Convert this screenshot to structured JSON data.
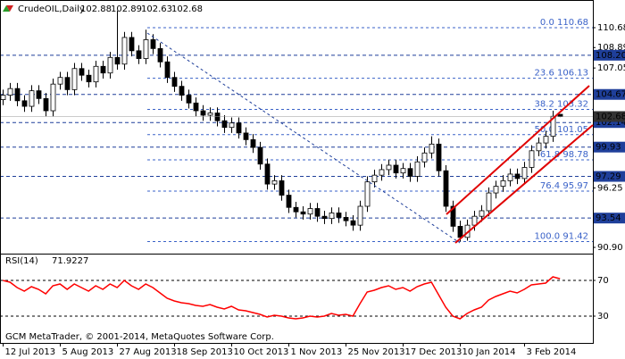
{
  "chart_data": [
    {
      "type": "candlestick",
      "title": "CrudeOIL,Daily",
      "open": [
        104.2,
        104.6,
        105.2,
        104.1,
        103.6,
        105.0,
        104.3,
        103.2,
        105.6,
        106.2,
        105.1,
        107.0,
        106.4,
        105.8,
        107.2,
        106.6,
        108.0,
        107.4,
        109.8,
        108.6,
        107.9,
        109.6,
        108.8,
        107.6,
        106.2,
        105.4,
        104.6,
        103.9,
        103.2,
        102.8,
        103.0,
        102.3,
        101.7,
        102.1,
        101.2,
        100.6,
        99.9,
        98.4,
        96.6,
        96.9,
        95.6,
        94.5,
        94.1,
        93.9,
        94.4,
        93.7,
        93.5,
        94.0,
        93.6,
        93.3,
        92.9,
        94.6,
        96.8,
        97.4,
        97.9,
        98.3,
        97.6,
        98.0,
        97.3,
        98.6,
        99.4,
        100.2,
        97.8,
        94.6,
        92.8,
        91.8,
        92.9,
        93.7,
        94.2,
        95.8,
        96.4,
        96.9,
        97.5,
        97.1,
        98.1,
        99.6,
        100.3,
        100.9,
        102.88
      ],
      "high": [
        105.1,
        105.7,
        105.7,
        104.6,
        105.5,
        105.5,
        104.8,
        106.1,
        106.7,
        106.7,
        107.5,
        107.5,
        106.9,
        107.7,
        107.7,
        108.5,
        112.2,
        110.3,
        110.3,
        109.1,
        110.5,
        110.1,
        109.3,
        108.1,
        106.7,
        105.9,
        105.1,
        104.4,
        103.7,
        103.5,
        103.5,
        102.8,
        102.6,
        102.6,
        101.7,
        101.1,
        100.4,
        98.9,
        97.4,
        97.4,
        96.1,
        95.0,
        94.6,
        94.9,
        94.9,
        94.2,
        94.5,
        94.5,
        94.1,
        93.8,
        95.1,
        97.3,
        97.9,
        98.4,
        98.8,
        98.8,
        98.5,
        98.5,
        99.1,
        99.9,
        100.9,
        100.7,
        98.3,
        95.1,
        93.3,
        93.4,
        94.2,
        94.7,
        96.3,
        96.9,
        97.4,
        98.0,
        98.0,
        98.6,
        100.1,
        100.8,
        101.4,
        103.2,
        102.89
      ],
      "low": [
        103.7,
        104.1,
        103.6,
        103.1,
        103.1,
        103.8,
        102.7,
        102.7,
        105.1,
        104.6,
        104.6,
        105.9,
        105.3,
        105.3,
        106.1,
        106.1,
        106.9,
        106.9,
        108.1,
        107.4,
        107.4,
        108.3,
        107.1,
        105.7,
        104.9,
        104.1,
        103.4,
        102.7,
        102.3,
        102.3,
        101.8,
        101.2,
        101.2,
        100.7,
        100.1,
        99.4,
        97.9,
        96.1,
        96.1,
        95.1,
        94.0,
        93.6,
        93.4,
        93.4,
        93.2,
        93.0,
        93.0,
        93.1,
        92.8,
        92.4,
        92.4,
        94.1,
        96.3,
        96.9,
        97.4,
        97.1,
        97.1,
        96.8,
        96.8,
        98.1,
        98.9,
        97.3,
        94.1,
        92.3,
        91.42,
        91.5,
        92.4,
        93.2,
        93.7,
        95.3,
        95.9,
        96.4,
        96.6,
        96.6,
        97.6,
        99.1,
        99.8,
        100.4,
        102.63
      ],
      "close": [
        104.6,
        105.2,
        104.1,
        103.6,
        105.0,
        104.3,
        103.2,
        105.6,
        106.2,
        105.1,
        107.0,
        106.4,
        105.8,
        107.2,
        106.6,
        108.0,
        107.4,
        109.8,
        108.6,
        107.9,
        109.6,
        108.8,
        107.6,
        106.2,
        105.4,
        104.6,
        103.9,
        103.2,
        102.8,
        103.0,
        102.3,
        101.7,
        102.1,
        101.2,
        100.6,
        99.9,
        98.4,
        96.6,
        96.9,
        95.6,
        94.5,
        94.1,
        93.9,
        94.4,
        93.7,
        93.5,
        94.0,
        93.6,
        93.3,
        92.9,
        94.6,
        96.8,
        97.4,
        97.9,
        98.3,
        97.6,
        98.0,
        97.3,
        98.6,
        99.4,
        100.2,
        97.8,
        94.6,
        92.8,
        91.8,
        92.9,
        93.7,
        94.2,
        95.8,
        96.4,
        96.9,
        97.5,
        97.1,
        98.1,
        99.6,
        100.3,
        100.9,
        102.7,
        102.68
      ],
      "xlim": [
        -0.4,
        82.6
      ],
      "ylim": [
        90.5,
        113.01
      ],
      "yticks": [
        110.68,
        108.89,
        107.05,
        96.25,
        {
          "value": 90.9,
          "label": "90.90"
        }
      ],
      "levels": [
        {
          "value": 108.2,
          "label": "108.20"
        },
        104.67,
        102.14,
        99.93,
        97.29,
        93.54
      ],
      "fibonacci": {
        "levels": [
          "0.0",
          "23.6",
          "38.2",
          "50.0",
          "61.8",
          "76.4",
          "100.0"
        ],
        "prices": [
          110.68,
          106.13,
          103.32,
          101.05,
          98.78,
          95.97,
          91.42
        ]
      },
      "up_color": "#ffffff",
      "down_color": "#000000",
      "level_color": "#1f3f9a",
      "fib_color": "#3a62c8"
    },
    {
      "type": "line",
      "title": "RSI(14)",
      "values": [
        70,
        68,
        62,
        58,
        63,
        60,
        55,
        64,
        66,
        60,
        66,
        62,
        58,
        64,
        60,
        66,
        62,
        70,
        64,
        60,
        66,
        62,
        56,
        50,
        47,
        45,
        44,
        42,
        41,
        43,
        40,
        38,
        41,
        37,
        36,
        34,
        32,
        29,
        31,
        30,
        28,
        27,
        28,
        30,
        29,
        30,
        33,
        31,
        32,
        30,
        44,
        57,
        59,
        62,
        64,
        60,
        62,
        58,
        63,
        66,
        68,
        54,
        40,
        30,
        27,
        33,
        37,
        40,
        48,
        52,
        55,
        58,
        56,
        60,
        65,
        66,
        67,
        74,
        71.9227
      ],
      "color": "#ff0000",
      "xlim": [
        -0.4,
        82.6
      ],
      "ylim": [
        0,
        100
      ],
      "yticks": [
        70,
        30
      ],
      "xticks": [
        {
          "value": 0,
          "label": "12 Jul 2013"
        },
        {
          "value": 8,
          "label": "5 Aug 2013"
        },
        {
          "value": 16,
          "label": "27 Aug 2013"
        },
        {
          "value": 24,
          "label": "18 Sep 2013"
        },
        {
          "value": 32,
          "label": "10 Oct 2013"
        },
        {
          "value": 40,
          "label": "1 Nov 2013"
        },
        {
          "value": 48,
          "label": "25 Nov 2013"
        },
        {
          "value": 56,
          "label": "17 Dec 2013"
        },
        {
          "value": 64,
          "label": "10 Jan 2014"
        },
        {
          "value": 73,
          "label": "3 Feb 2014"
        }
      ],
      "annotation": "GCM MetaTrader, © 2001-2014, MetaQuotes Software Corp."
    }
  ]
}
